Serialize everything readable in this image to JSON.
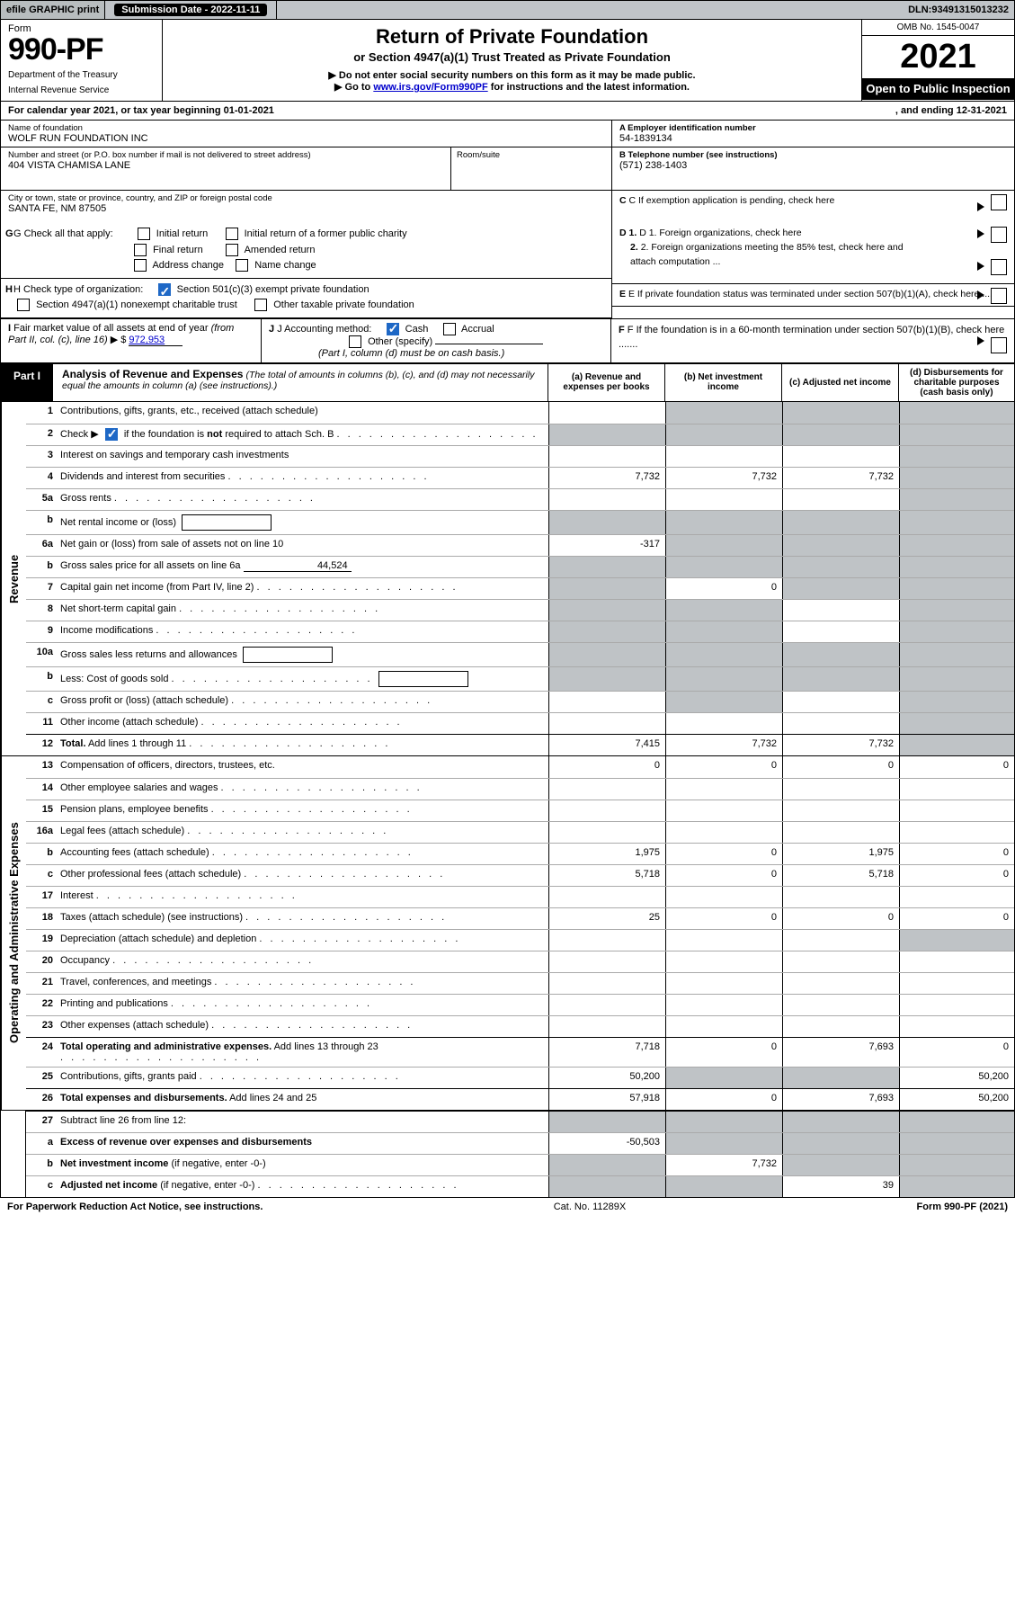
{
  "topbar": {
    "efile": "efile GRAPHIC print",
    "submission_label": "Submission Date - ",
    "submission_date": "2022-11-11",
    "dln_label": "DLN: ",
    "dln": "93491315013232"
  },
  "header": {
    "form_label": "Form",
    "form_number": "990-PF",
    "dept": "Department of the Treasury",
    "irs": "Internal Revenue Service",
    "title": "Return of Private Foundation",
    "subtitle": "or Section 4947(a)(1) Trust Treated as Private Foundation",
    "inst1": "▶ Do not enter social security numbers on this form as it may be made public.",
    "inst2_pre": "▶ Go to ",
    "inst2_link": "www.irs.gov/Form990PF",
    "inst2_post": " for instructions and the latest information.",
    "omb": "OMB No. 1545-0047",
    "year": "2021",
    "open": "Open to Public Inspection"
  },
  "calyear": {
    "text_pre": "For calendar year 2021, or tax year beginning ",
    "begin": "01-01-2021",
    "mid": " , and ending ",
    "end": "12-31-2021"
  },
  "id": {
    "name_label": "Name of foundation",
    "name": "WOLF RUN FOUNDATION INC",
    "addr_label": "Number and street (or P.O. box number if mail is not delivered to street address)",
    "addr": "404 VISTA CHAMISA LANE",
    "room_label": "Room/suite",
    "room": "",
    "city_label": "City or town, state or province, country, and ZIP or foreign postal code",
    "city": "SANTA FE, NM  87505",
    "a_label": "A Employer identification number",
    "a_val": "54-1839134",
    "b_label": "B Telephone number (see instructions)",
    "b_val": "(571) 238-1403",
    "c_label": "C  If exemption application is pending, check here"
  },
  "checks": {
    "g_label": "G Check all that apply:",
    "g_opts": [
      "Initial return",
      "Initial return of a former public charity",
      "Final return",
      "Amended return",
      "Address change",
      "Name change"
    ],
    "h_label": "H Check type of organization:",
    "h_opt1": "Section 501(c)(3) exempt private foundation",
    "h_opt2": "Section 4947(a)(1) nonexempt charitable trust",
    "h_opt3": "Other taxable private foundation",
    "i_label": "I Fair market value of all assets at end of year (from Part II, col. (c), line 16) ▶ $",
    "i_val": "972,953",
    "j_label": "J Accounting method:",
    "j_cash": "Cash",
    "j_accrual": "Accrual",
    "j_other": "Other (specify)",
    "j_note": "(Part I, column (d) must be on cash basis.)",
    "d1": "D 1. Foreign organizations, check here",
    "d2": "2. Foreign organizations meeting the 85% test, check here and attach computation ...",
    "e": "E  If private foundation status was terminated under section 507(b)(1)(A), check here .......",
    "f": "F  If the foundation is in a 60-month termination under section 507(b)(1)(B), check here ......."
  },
  "part1": {
    "tab": "Part I",
    "title": "Analysis of Revenue and Expenses",
    "title_note": "(The total of amounts in columns (b), (c), and (d) may not necessarily equal the amounts in column (a) (see instructions).)",
    "cols": {
      "a": "(a) Revenue and expenses per books",
      "b": "(b) Net investment income",
      "c": "(c) Adjusted net income",
      "d": "(d) Disbursements for charitable purposes (cash basis only)"
    }
  },
  "sidelabels": {
    "revenue": "Revenue",
    "opexp": "Operating and Administrative Expenses"
  },
  "rows": [
    {
      "n": "1",
      "desc": "Contributions, gifts, grants, etc., received (attach schedule)",
      "a": "",
      "b": "shade",
      "c": "shade",
      "d": "shade"
    },
    {
      "n": "2",
      "desc": "Check ▶ [✓] if the foundation is <b>not</b> required to attach Sch. B",
      "dots": true,
      "a": "shade",
      "b": "shade",
      "c": "shade",
      "d": "shade",
      "hascheck": true
    },
    {
      "n": "3",
      "desc": "Interest on savings and temporary cash investments",
      "a": "",
      "b": "",
      "c": "",
      "d": "shade"
    },
    {
      "n": "4",
      "desc": "Dividends and interest from securities",
      "dots": true,
      "a": "7,732",
      "b": "7,732",
      "c": "7,732",
      "d": "shade"
    },
    {
      "n": "5a",
      "desc": "Gross rents",
      "dots": true,
      "a": "",
      "b": "",
      "c": "",
      "d": "shade"
    },
    {
      "n": "b",
      "desc": "Net rental income or (loss)",
      "inlinebox": true,
      "a": "shade",
      "b": "shade",
      "c": "shade",
      "d": "shade"
    },
    {
      "n": "6a",
      "desc": "Net gain or (loss) from sale of assets not on line 10",
      "a": "-317",
      "b": "shade",
      "c": "shade",
      "d": "shade"
    },
    {
      "n": "b",
      "desc": "Gross sales price for all assets on line 6a",
      "subval": "44,524",
      "a": "shade",
      "b": "shade",
      "c": "shade",
      "d": "shade",
      "hasline": true
    },
    {
      "n": "7",
      "desc": "Capital gain net income (from Part IV, line 2)",
      "dots": true,
      "a": "shade",
      "b": "0",
      "c": "shade",
      "d": "shade"
    },
    {
      "n": "8",
      "desc": "Net short-term capital gain",
      "dots": true,
      "a": "shade",
      "b": "shade",
      "c": "",
      "d": "shade"
    },
    {
      "n": "9",
      "desc": "Income modifications",
      "dots": true,
      "a": "shade",
      "b": "shade",
      "c": "",
      "d": "shade"
    },
    {
      "n": "10a",
      "desc": "Gross sales less returns and allowances",
      "inlinebox": true,
      "a": "shade",
      "b": "shade",
      "c": "shade",
      "d": "shade"
    },
    {
      "n": "b",
      "desc": "Less: Cost of goods sold",
      "dots": true,
      "inlinebox": true,
      "a": "shade",
      "b": "shade",
      "c": "shade",
      "d": "shade"
    },
    {
      "n": "c",
      "desc": "Gross profit or (loss) (attach schedule)",
      "dots": true,
      "a": "",
      "b": "shade",
      "c": "",
      "d": "shade"
    },
    {
      "n": "11",
      "desc": "Other income (attach schedule)",
      "dots": true,
      "a": "",
      "b": "",
      "c": "",
      "d": "shade"
    },
    {
      "n": "12",
      "desc": "<b>Total.</b> Add lines 1 through 11",
      "dots": true,
      "a": "7,415",
      "b": "7,732",
      "c": "7,732",
      "d": "shade",
      "thick": true
    }
  ],
  "exp_rows": [
    {
      "n": "13",
      "desc": "Compensation of officers, directors, trustees, etc.",
      "a": "0",
      "b": "0",
      "c": "0",
      "d": "0"
    },
    {
      "n": "14",
      "desc": "Other employee salaries and wages",
      "dots": true,
      "a": "",
      "b": "",
      "c": "",
      "d": ""
    },
    {
      "n": "15",
      "desc": "Pension plans, employee benefits",
      "dots": true,
      "a": "",
      "b": "",
      "c": "",
      "d": ""
    },
    {
      "n": "16a",
      "desc": "Legal fees (attach schedule)",
      "dots": true,
      "a": "",
      "b": "",
      "c": "",
      "d": ""
    },
    {
      "n": "b",
      "desc": "Accounting fees (attach schedule)",
      "dots": true,
      "a": "1,975",
      "b": "0",
      "c": "1,975",
      "d": "0"
    },
    {
      "n": "c",
      "desc": "Other professional fees (attach schedule)",
      "dots": true,
      "a": "5,718",
      "b": "0",
      "c": "5,718",
      "d": "0"
    },
    {
      "n": "17",
      "desc": "Interest",
      "dots": true,
      "a": "",
      "b": "",
      "c": "",
      "d": ""
    },
    {
      "n": "18",
      "desc": "Taxes (attach schedule) (see instructions)",
      "dots": true,
      "a": "25",
      "b": "0",
      "c": "0",
      "d": "0"
    },
    {
      "n": "19",
      "desc": "Depreciation (attach schedule) and depletion",
      "dots": true,
      "a": "",
      "b": "",
      "c": "",
      "d": "shade"
    },
    {
      "n": "20",
      "desc": "Occupancy",
      "dots": true,
      "a": "",
      "b": "",
      "c": "",
      "d": ""
    },
    {
      "n": "21",
      "desc": "Travel, conferences, and meetings",
      "dots": true,
      "a": "",
      "b": "",
      "c": "",
      "d": ""
    },
    {
      "n": "22",
      "desc": "Printing and publications",
      "dots": true,
      "a": "",
      "b": "",
      "c": "",
      "d": ""
    },
    {
      "n": "23",
      "desc": "Other expenses (attach schedule)",
      "dots": true,
      "a": "",
      "b": "",
      "c": "",
      "d": ""
    },
    {
      "n": "24",
      "desc": "<b>Total operating and administrative expenses.</b> Add lines 13 through 23",
      "dots": true,
      "a": "7,718",
      "b": "0",
      "c": "7,693",
      "d": "0",
      "thick": true
    },
    {
      "n": "25",
      "desc": "Contributions, gifts, grants paid",
      "dots": true,
      "a": "50,200",
      "b": "shade",
      "c": "shade",
      "d": "50,200"
    },
    {
      "n": "26",
      "desc": "<b>Total expenses and disbursements.</b> Add lines 24 and 25",
      "a": "57,918",
      "b": "0",
      "c": "7,693",
      "d": "50,200",
      "thick": true
    }
  ],
  "net_rows": [
    {
      "n": "27",
      "desc": "Subtract line 26 from line 12:",
      "a": "shade",
      "b": "shade",
      "c": "shade",
      "d": "shade",
      "thick": true
    },
    {
      "n": "a",
      "desc": "<b>Excess of revenue over expenses and disbursements</b>",
      "a": "-50,503",
      "b": "shade",
      "c": "shade",
      "d": "shade"
    },
    {
      "n": "b",
      "desc": "<b>Net investment income</b> (if negative, enter -0-)",
      "a": "shade",
      "b": "7,732",
      "c": "shade",
      "d": "shade"
    },
    {
      "n": "c",
      "desc": "<b>Adjusted net income</b> (if negative, enter -0-)",
      "dots": true,
      "a": "shade",
      "b": "shade",
      "c": "39",
      "d": "shade"
    }
  ],
  "footer": {
    "left": "For Paperwork Reduction Act Notice, see instructions.",
    "mid": "Cat. No. 11289X",
    "right": "Form 990-PF (2021)"
  },
  "colors": {
    "shade": "#bfc3c6",
    "link": "#0000cc",
    "check_blue": "#1e68c6"
  }
}
